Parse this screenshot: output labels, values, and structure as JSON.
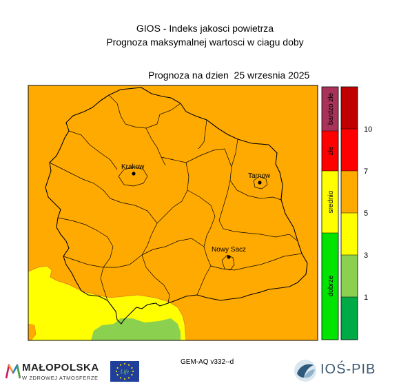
{
  "header": {
    "line1": "GIOS - Indeks jakosci powietrza",
    "line2": "Prognoza maksymalnej wartosci w ciagu doby",
    "date": "Prognoza na dzien  25 wrzesnia 2025"
  },
  "cities": [
    {
      "name": "Krakow"
    },
    {
      "name": "Tarnow"
    },
    {
      "name": "Nowy Sacz"
    }
  ],
  "legend": {
    "categories": [
      {
        "label": "bardzo złe",
        "color": "#a8325a"
      },
      {
        "label": "złe",
        "color": "#ff0000"
      },
      {
        "label": "srednio",
        "color": "#ffff00"
      },
      {
        "label": "dobrze",
        "color": "#00e400"
      }
    ],
    "scale": [
      {
        "color": "#c00000"
      },
      {
        "color": "#ff0000"
      },
      {
        "color": "#ffaa00"
      },
      {
        "color": "#ffff00"
      },
      {
        "color": "#8cd050"
      },
      {
        "color": "#00aa44"
      }
    ],
    "ticks": [
      "10",
      "7",
      "5",
      "3",
      "1"
    ]
  },
  "map_colors": {
    "orange": "#ffaa00",
    "yellow": "#ffff00",
    "green": "#8cd050"
  },
  "footer": {
    "model": "GEM-AQ v332--d",
    "malopolska": "MAŁOPOLSKA",
    "malopolska_sub": "W ZDROWEJ ATMOSFERZE",
    "eu_text": "Life",
    "ios": "IOŚ-PIB"
  }
}
